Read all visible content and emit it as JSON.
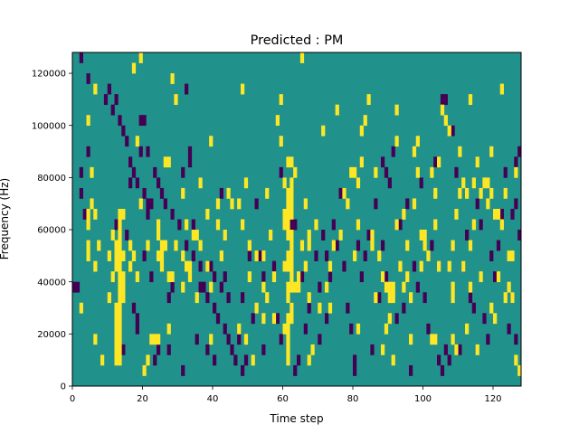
{
  "chart_data": {
    "type": "heatmap",
    "title": "Predicted : PM",
    "xlabel": "Time step",
    "ylabel": "Frequency (Hz)",
    "xlim": [
      0,
      128
    ],
    "ylim": [
      0,
      128000
    ],
    "x_ticks": [
      {
        "value": 0,
        "label": "0"
      },
      {
        "value": 20,
        "label": "20"
      },
      {
        "value": 40,
        "label": "40"
      },
      {
        "value": 60,
        "label": "60"
      },
      {
        "value": 80,
        "label": "80"
      },
      {
        "value": 100,
        "label": "100"
      },
      {
        "value": 120,
        "label": "120"
      }
    ],
    "y_ticks": [
      {
        "value": 0,
        "label": "0"
      },
      {
        "value": 20000,
        "label": "20000"
      },
      {
        "value": 40000,
        "label": "40000"
      },
      {
        "value": 60000,
        "label": "60000"
      },
      {
        "value": 80000,
        "label": "80000"
      },
      {
        "value": 100000,
        "label": "100000"
      },
      {
        "value": 120000,
        "label": "120000"
      }
    ],
    "grid": false,
    "colormap": "viridis",
    "levels": [
      -1,
      0,
      1
    ],
    "level_colors": {
      "-1": "#440154",
      "0": "#21918c",
      "1": "#fde725"
    },
    "rows": 32,
    "row_bin_hz": 4000,
    "background_value": 0,
    "cells_high": [
      [
        12,
        2
      ],
      [
        13,
        2
      ],
      [
        12,
        3
      ],
      [
        13,
        3
      ],
      [
        12,
        4
      ],
      [
        13,
        4
      ],
      [
        12,
        5
      ],
      [
        13,
        5
      ],
      [
        12,
        6
      ],
      [
        13,
        6
      ],
      [
        12,
        7
      ],
      [
        13,
        7
      ],
      [
        13,
        8
      ],
      [
        14,
        8
      ],
      [
        13,
        9
      ],
      [
        14,
        9
      ],
      [
        13,
        10
      ],
      [
        14,
        10
      ],
      [
        12,
        11
      ],
      [
        13,
        11
      ],
      [
        12,
        12
      ],
      [
        13,
        12
      ],
      [
        12,
        13
      ],
      [
        13,
        13
      ],
      [
        13,
        14
      ],
      [
        13,
        15
      ],
      [
        13,
        16
      ],
      [
        61,
        2
      ],
      [
        61,
        3
      ],
      [
        61,
        4
      ],
      [
        61,
        5
      ],
      [
        61,
        6
      ],
      [
        62,
        6
      ],
      [
        62,
        7
      ],
      [
        61,
        8
      ],
      [
        61,
        9
      ],
      [
        62,
        9
      ],
      [
        62,
        10
      ],
      [
        61,
        11
      ],
      [
        62,
        11
      ],
      [
        61,
        12
      ],
      [
        62,
        12
      ],
      [
        62,
        13
      ],
      [
        61,
        14
      ],
      [
        62,
        14
      ],
      [
        61,
        15
      ],
      [
        61,
        16
      ],
      [
        62,
        16
      ],
      [
        61,
        17
      ],
      [
        62,
        17
      ],
      [
        61,
        18
      ],
      [
        62,
        18
      ],
      [
        62,
        19
      ],
      [
        63,
        20
      ],
      [
        61,
        21
      ],
      [
        62,
        21
      ],
      [
        90,
        8
      ],
      [
        91,
        8
      ],
      [
        90,
        9
      ],
      [
        91,
        9
      ],
      [
        20,
        1
      ],
      [
        21,
        2
      ],
      [
        2,
        7
      ],
      [
        4,
        12
      ],
      [
        4,
        13
      ],
      [
        4,
        15
      ],
      [
        4,
        16
      ],
      [
        6,
        4
      ],
      [
        6,
        11
      ],
      [
        7,
        13
      ],
      [
        8,
        2
      ],
      [
        10,
        8
      ],
      [
        10,
        12
      ],
      [
        11,
        10
      ],
      [
        11,
        14
      ],
      [
        14,
        16
      ],
      [
        16,
        11
      ],
      [
        16,
        13
      ],
      [
        17,
        12
      ],
      [
        18,
        10
      ],
      [
        24,
        4
      ],
      [
        24,
        14
      ],
      [
        24,
        15
      ],
      [
        25,
        11
      ],
      [
        25,
        12
      ],
      [
        25,
        13
      ],
      [
        26,
        13
      ],
      [
        27,
        5
      ],
      [
        27,
        10
      ],
      [
        28,
        10
      ],
      [
        29,
        13
      ],
      [
        31,
        9
      ],
      [
        31,
        18
      ],
      [
        32,
        15
      ],
      [
        33,
        11
      ],
      [
        34,
        14
      ],
      [
        35,
        8
      ],
      [
        36,
        13
      ],
      [
        38,
        11
      ],
      [
        39,
        4
      ],
      [
        39,
        9
      ],
      [
        41,
        17
      ],
      [
        42,
        12
      ],
      [
        47,
        17
      ],
      [
        48,
        15
      ],
      [
        49,
        4
      ],
      [
        50,
        13
      ],
      [
        51,
        2
      ],
      [
        52,
        12
      ],
      [
        54,
        9
      ],
      [
        54,
        12
      ],
      [
        55,
        8
      ],
      [
        57,
        6
      ],
      [
        57,
        10
      ],
      [
        60,
        5
      ],
      [
        60,
        11
      ],
      [
        60,
        15
      ],
      [
        60,
        16
      ],
      [
        64,
        9
      ],
      [
        65,
        13
      ],
      [
        66,
        11
      ],
      [
        67,
        2
      ],
      [
        67,
        13
      ],
      [
        67,
        14
      ],
      [
        70,
        7
      ],
      [
        73,
        7
      ],
      [
        80,
        20
      ],
      [
        81,
        5
      ],
      [
        81,
        15
      ],
      [
        82,
        21
      ],
      [
        85,
        13
      ],
      [
        86,
        20
      ],
      [
        88,
        10
      ],
      [
        89,
        5
      ],
      [
        90,
        6
      ],
      [
        91,
        2
      ],
      [
        92,
        15
      ],
      [
        92,
        23
      ],
      [
        94,
        9
      ],
      [
        95,
        13
      ],
      [
        96,
        8
      ],
      [
        97,
        17
      ],
      [
        98,
        20
      ],
      [
        98,
        23
      ],
      [
        99,
        11
      ],
      [
        100,
        14
      ],
      [
        102,
        4
      ],
      [
        103,
        4
      ],
      [
        103,
        15
      ],
      [
        104,
        21
      ],
      [
        107,
        11
      ],
      [
        108,
        4
      ],
      [
        108,
        8
      ],
      [
        108,
        9
      ],
      [
        109,
        3
      ],
      [
        110,
        18
      ],
      [
        111,
        19
      ],
      [
        112,
        18
      ],
      [
        113,
        9
      ],
      [
        113,
        13
      ],
      [
        114,
        19
      ],
      [
        115,
        3
      ],
      [
        116,
        10
      ],
      [
        118,
        19
      ],
      [
        119,
        18
      ],
      [
        119,
        7
      ],
      [
        120,
        16
      ],
      [
        121,
        16
      ],
      [
        122,
        15
      ],
      [
        123,
        18
      ],
      [
        124,
        12
      ],
      [
        125,
        8
      ],
      [
        126,
        20
      ],
      [
        126,
        2
      ],
      [
        127,
        1
      ],
      [
        4,
        25
      ],
      [
        5,
        17
      ],
      [
        6,
        28
      ],
      [
        6,
        16
      ],
      [
        5,
        20
      ],
      [
        14,
        12
      ],
      [
        17,
        30
      ],
      [
        18,
        23
      ],
      [
        19,
        17
      ],
      [
        19,
        31
      ],
      [
        21,
        13
      ],
      [
        22,
        4
      ],
      [
        23,
        4
      ],
      [
        24,
        12
      ],
      [
        26,
        21
      ],
      [
        27,
        21
      ],
      [
        28,
        29
      ],
      [
        29,
        27
      ],
      [
        31,
        12
      ],
      [
        32,
        11
      ],
      [
        33,
        10
      ],
      [
        35,
        14
      ],
      [
        36,
        19
      ],
      [
        38,
        16
      ],
      [
        39,
        23
      ],
      [
        41,
        15
      ],
      [
        43,
        14
      ],
      [
        44,
        18
      ],
      [
        45,
        17
      ],
      [
        47,
        5
      ],
      [
        48,
        28
      ],
      [
        49,
        19
      ],
      [
        50,
        10
      ],
      [
        52,
        7
      ],
      [
        54,
        6
      ],
      [
        55,
        18
      ],
      [
        56,
        14
      ],
      [
        58,
        25
      ],
      [
        59,
        23
      ],
      [
        59,
        27
      ],
      [
        60,
        19
      ],
      [
        63,
        9
      ],
      [
        64,
        10
      ],
      [
        65,
        31
      ],
      [
        66,
        17
      ],
      [
        67,
        8
      ],
      [
        68,
        3
      ],
      [
        69,
        15
      ],
      [
        71,
        24
      ],
      [
        72,
        9
      ],
      [
        73,
        11
      ],
      [
        74,
        13
      ],
      [
        75,
        26
      ],
      [
        76,
        14
      ],
      [
        77,
        18
      ],
      [
        78,
        17
      ],
      [
        79,
        20
      ],
      [
        80,
        12
      ],
      [
        81,
        19
      ],
      [
        82,
        24
      ],
      [
        83,
        25
      ],
      [
        84,
        27
      ],
      [
        85,
        14
      ],
      [
        86,
        8
      ],
      [
        87,
        12
      ],
      [
        88,
        3
      ],
      [
        89,
        9
      ],
      [
        92,
        26
      ],
      [
        93,
        11
      ],
      [
        94,
        16
      ],
      [
        95,
        10
      ],
      [
        96,
        4
      ],
      [
        97,
        22
      ],
      [
        99,
        14
      ],
      [
        100,
        13
      ],
      [
        101,
        12
      ],
      [
        102,
        20
      ],
      [
        103,
        18
      ],
      [
        104,
        11
      ],
      [
        105,
        26
      ],
      [
        106,
        25
      ],
      [
        107,
        24
      ],
      [
        108,
        13
      ],
      [
        109,
        16
      ],
      [
        110,
        22
      ],
      [
        111,
        11
      ],
      [
        112,
        5
      ],
      [
        113,
        27
      ],
      [
        114,
        15
      ],
      [
        115,
        21
      ],
      [
        116,
        18
      ],
      [
        117,
        19
      ],
      [
        118,
        17
      ],
      [
        119,
        22
      ],
      [
        120,
        6
      ],
      [
        121,
        10
      ],
      [
        122,
        28
      ],
      [
        123,
        8
      ],
      [
        124,
        9
      ],
      [
        125,
        12
      ]
    ],
    "cells_low": [
      [
        0,
        9
      ],
      [
        1,
        9
      ],
      [
        4,
        29
      ],
      [
        2,
        31
      ],
      [
        2,
        18
      ],
      [
        2,
        20
      ],
      [
        4,
        22
      ],
      [
        3,
        16
      ],
      [
        19,
        22
      ],
      [
        19,
        25
      ],
      [
        20,
        25
      ],
      [
        21,
        22
      ],
      [
        22,
        17
      ],
      [
        21,
        16
      ],
      [
        22,
        10
      ],
      [
        20,
        12
      ],
      [
        18,
        5
      ],
      [
        18,
        6
      ],
      [
        17,
        7
      ],
      [
        14,
        3
      ],
      [
        12,
        15
      ],
      [
        15,
        14
      ],
      [
        16,
        19
      ],
      [
        23,
        2
      ],
      [
        24,
        3
      ],
      [
        25,
        18
      ],
      [
        27,
        3
      ],
      [
        27,
        8
      ],
      [
        28,
        9
      ],
      [
        31,
        1
      ],
      [
        31,
        20
      ],
      [
        32,
        28
      ],
      [
        33,
        22
      ],
      [
        33,
        21
      ],
      [
        35,
        4
      ],
      [
        34,
        15
      ],
      [
        36,
        9
      ],
      [
        38,
        3
      ],
      [
        40,
        2
      ],
      [
        39,
        11
      ],
      [
        40,
        10
      ],
      [
        42,
        18
      ],
      [
        42,
        9
      ],
      [
        43,
        10
      ],
      [
        44,
        8
      ],
      [
        47,
        4
      ],
      [
        48,
        8
      ],
      [
        50,
        12
      ],
      [
        51,
        6
      ],
      [
        52,
        17
      ],
      [
        53,
        12
      ],
      [
        54,
        3
      ],
      [
        54,
        10
      ],
      [
        57,
        11
      ],
      [
        58,
        6
      ],
      [
        59,
        4
      ],
      [
        59,
        20
      ],
      [
        61,
        12
      ],
      [
        62,
        7
      ],
      [
        62,
        15
      ],
      [
        63,
        1
      ],
      [
        63,
        15
      ],
      [
        64,
        2
      ],
      [
        65,
        10
      ],
      [
        66,
        5
      ],
      [
        67,
        7
      ],
      [
        69,
        12
      ],
      [
        70,
        4
      ],
      [
        70,
        9
      ],
      [
        71,
        14
      ],
      [
        72,
        12
      ],
      [
        72,
        6
      ],
      [
        73,
        10
      ],
      [
        74,
        15
      ],
      [
        75,
        13
      ],
      [
        76,
        18
      ],
      [
        77,
        11
      ],
      [
        78,
        7
      ],
      [
        79,
        5
      ],
      [
        80,
        1
      ],
      [
        80,
        2
      ],
      [
        81,
        13
      ],
      [
        82,
        10
      ],
      [
        83,
        12
      ],
      [
        84,
        14
      ],
      [
        85,
        3
      ],
      [
        86,
        17
      ],
      [
        87,
        8
      ],
      [
        88,
        13
      ],
      [
        89,
        10
      ],
      [
        90,
        19
      ],
      [
        91,
        22
      ],
      [
        92,
        6
      ],
      [
        93,
        15
      ],
      [
        94,
        7
      ],
      [
        95,
        17
      ],
      [
        96,
        1
      ],
      [
        97,
        11
      ],
      [
        98,
        9
      ],
      [
        99,
        19
      ],
      [
        100,
        8
      ],
      [
        101,
        5
      ],
      [
        102,
        13
      ],
      [
        103,
        21
      ],
      [
        104,
        2
      ],
      [
        105,
        1
      ],
      [
        105,
        27
      ],
      [
        106,
        27
      ],
      [
        106,
        3
      ],
      [
        107,
        2
      ],
      [
        108,
        24
      ],
      [
        109,
        20
      ],
      [
        110,
        3
      ],
      [
        111,
        11
      ],
      [
        112,
        14
      ],
      [
        113,
        8
      ],
      [
        114,
        7
      ],
      [
        115,
        17
      ],
      [
        116,
        15
      ],
      [
        117,
        6
      ],
      [
        118,
        4
      ],
      [
        119,
        12
      ],
      [
        120,
        10
      ],
      [
        121,
        13
      ],
      [
        122,
        16
      ],
      [
        123,
        20
      ],
      [
        124,
        5
      ],
      [
        125,
        8
      ],
      [
        126,
        21
      ],
      [
        126,
        17
      ],
      [
        127,
        22
      ],
      [
        126,
        4
      ],
      [
        127,
        14
      ],
      [
        125,
        16
      ],
      [
        124,
        12
      ],
      [
        88,
        21
      ],
      [
        89,
        20
      ],
      [
        9,
        27
      ],
      [
        10,
        28
      ],
      [
        11,
        26
      ],
      [
        12,
        27
      ],
      [
        13,
        25
      ],
      [
        14,
        24
      ],
      [
        15,
        23
      ],
      [
        16,
        21
      ],
      [
        17,
        20
      ],
      [
        18,
        19
      ],
      [
        20,
        18
      ],
      [
        21,
        17
      ],
      [
        23,
        20
      ],
      [
        24,
        19
      ],
      [
        26,
        17
      ],
      [
        28,
        16
      ],
      [
        30,
        15
      ],
      [
        32,
        13
      ],
      [
        34,
        12
      ],
      [
        36,
        11
      ],
      [
        37,
        9
      ],
      [
        38,
        8
      ],
      [
        40,
        7
      ],
      [
        41,
        6
      ],
      [
        43,
        5
      ],
      [
        44,
        4
      ],
      [
        45,
        3
      ],
      [
        46,
        2
      ],
      [
        48,
        1
      ],
      [
        49,
        2
      ]
    ]
  }
}
